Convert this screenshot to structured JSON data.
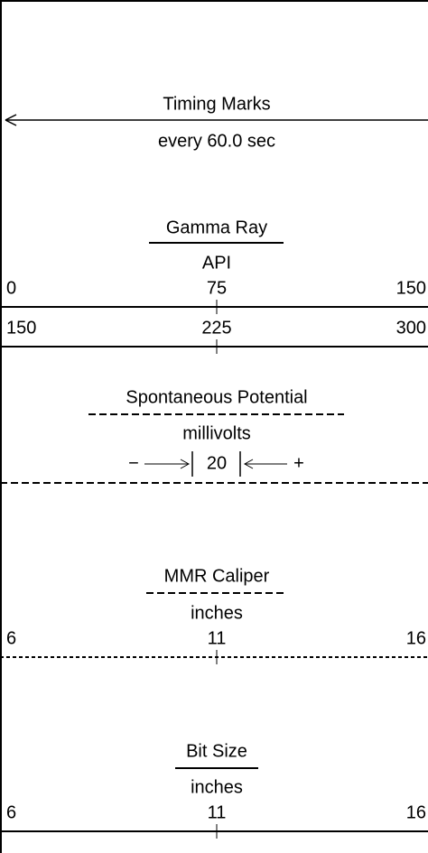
{
  "timing": {
    "title": "Timing Marks",
    "subtitle": "every 60.0 sec"
  },
  "tracks": [
    {
      "title": "Gamma Ray",
      "unit": "API",
      "scales": [
        [
          0,
          75,
          150
        ],
        [
          150,
          225,
          300
        ]
      ]
    },
    {
      "title": "Spontaneous Potential",
      "unit": "millivolts",
      "minus": "−",
      "span": 20,
      "plus": "+"
    },
    {
      "title": "MMR Caliper",
      "unit": "inches",
      "scales": [
        [
          6,
          11,
          16
        ]
      ]
    },
    {
      "title": "Bit Size",
      "unit": "inches",
      "scales": [
        [
          6,
          11,
          16
        ]
      ]
    }
  ]
}
